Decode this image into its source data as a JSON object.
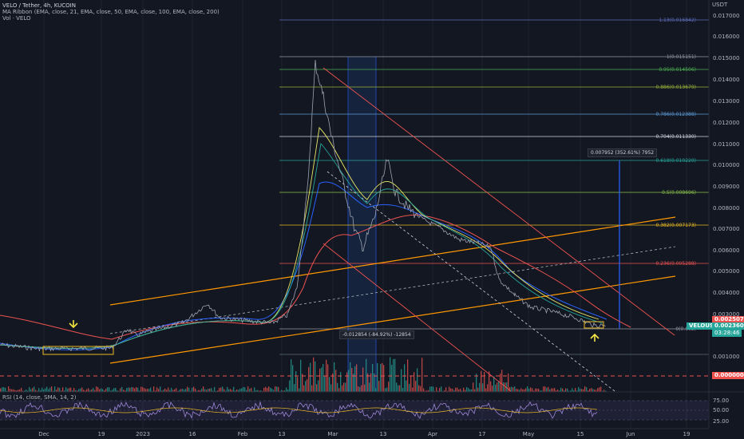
{
  "legend": {
    "symbol": "VELO / Tether, 4h, KUCOIN",
    "ribbon": "MA Ribbon (EMA, close, 21, EMA, close, 50, EMA, close, 100, EMA, close, 200)",
    "volume": "Vol · VELO"
  },
  "axis": {
    "currency": "USDT",
    "price_ticks": [
      "0.017000",
      "0.016000",
      "0.015000",
      "0.014000",
      "0.013000",
      "0.012000",
      "0.011000",
      "0.010000",
      "0.009000",
      "0.008000",
      "0.007000",
      "0.006000",
      "0.005000",
      "0.004000",
      "0.003000",
      "0.001000"
    ],
    "rsi_ticks": [
      "75.00",
      "50.00",
      "25.00"
    ],
    "time_ticks": [
      "Dec",
      "19",
      "2023",
      "16",
      "Feb",
      "13",
      "Mar",
      "13",
      "Apr",
      "17",
      "May",
      "15",
      "Jun",
      "19"
    ]
  },
  "fib_labels": [
    {
      "text": "1.13(0.016842)",
      "color": "#5b6bb8"
    },
    {
      "text": "1(0.015151)",
      "color": "#9598a1"
    },
    {
      "text": "0.95(0.014506)",
      "color": "#4caf50"
    },
    {
      "text": "0.886(0.013679)",
      "color": "#9bb33a"
    },
    {
      "text": "0.786(0.012388)",
      "color": "#5b9bd5"
    },
    {
      "text": "0.704(0.011330)",
      "color": "#d1d4dc"
    },
    {
      "text": "0.618(0.010220)",
      "color": "#26a69a"
    },
    {
      "text": "0.5(0.008696)",
      "color": "#8bc34a"
    },
    {
      "text": "0.382(0.007173)",
      "color": "#e8b923"
    },
    {
      "text": "0.236(0.005288)",
      "color": "#ef5350"
    },
    {
      "text": "0(0.002)",
      "color": "#9598a1"
    }
  ],
  "measure": {
    "up": "0.007952 (352.61%) 7952",
    "down": "-0.012854 (-84.92%) -12854"
  },
  "tags": {
    "red_price": "0.002507",
    "ticker": "VELOUSDT",
    "last_price": "0.002360",
    "countdown": "03:28:46",
    "zero": "0.000000"
  },
  "rsi_label": "RSI (14, close, SMA, 14, 2)",
  "colors": {
    "background": "#131722",
    "up": "#26a69a",
    "down": "#ef5350",
    "channel": "#ff9800",
    "price_line": "#2962ff"
  }
}
